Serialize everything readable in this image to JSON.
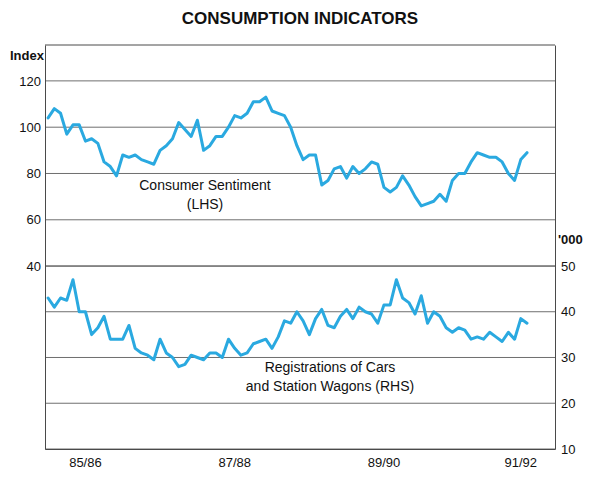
{
  "chart_data": {
    "type": "line",
    "title": "CONSUMPTION INDICATORS",
    "ylabel": "Index",
    "y2label": "'000",
    "categories": [
      null,
      null,
      null,
      null,
      null,
      null,
      "85/86",
      null,
      null,
      null,
      null,
      null,
      null,
      null,
      null,
      null,
      null,
      null,
      null,
      null,
      null,
      null,
      null,
      null,
      null,
      null,
      null,
      null,
      null,
      null,
      "87/88",
      null,
      null,
      null,
      null,
      null,
      null,
      null,
      null,
      null,
      null,
      null,
      null,
      null,
      null,
      null,
      null,
      null,
      null,
      null,
      null,
      null,
      null,
      null,
      "89/90",
      null,
      null,
      null,
      null,
      null,
      null,
      null,
      null,
      null,
      null,
      null,
      null,
      null,
      null,
      null,
      null,
      null,
      null,
      null,
      null,
      null,
      "91/92",
      null,
      null,
      null,
      null,
      null
    ],
    "series": [
      {
        "name": "Consumer Sentiment\n(LHS)",
        "color": "#2aa9e0",
        "axis": "y",
        "values": [
          104,
          108,
          106,
          97,
          101,
          101,
          94,
          95,
          93,
          85,
          83,
          79,
          88,
          87,
          88,
          86,
          85,
          84,
          90,
          92,
          95,
          102,
          99,
          96,
          103,
          90,
          92,
          96,
          96,
          100,
          105,
          104,
          106,
          111,
          111,
          113,
          107,
          106,
          105,
          100,
          92,
          86,
          88,
          88,
          75,
          77,
          82,
          83,
          78,
          83,
          80,
          82,
          85,
          84,
          74,
          72,
          74,
          79,
          75,
          70,
          66,
          67,
          68,
          71,
          68,
          77,
          80,
          80,
          85,
          89,
          88,
          87,
          87,
          85,
          80,
          77,
          86,
          89,
          null,
          null,
          null,
          null
        ]
      },
      {
        "name": "Registrations of Cars\nand Station Wagons (RHS)",
        "color": "#2aa9e0",
        "axis": "y2",
        "values": [
          43,
          41,
          43,
          42.5,
          47,
          40,
          40,
          35,
          36.5,
          39,
          34,
          34,
          34,
          37,
          32,
          31,
          30.5,
          29.5,
          34,
          31,
          30,
          28,
          28.5,
          30.5,
          30,
          29.5,
          31,
          31,
          30,
          34,
          32,
          30.5,
          31,
          33,
          33.5,
          34,
          32,
          34.5,
          38,
          37.5,
          40,
          38,
          35,
          38.5,
          40.5,
          37,
          36.5,
          39,
          40.5,
          38.5,
          41,
          40,
          39.5,
          37.5,
          41.5,
          41.5,
          47,
          43,
          42,
          39.5,
          43.5,
          37.5,
          40,
          39,
          36.5,
          35.5,
          36.5,
          36,
          34,
          34.5,
          34,
          35.5,
          34.5,
          33.5,
          35.5,
          34,
          38.5,
          37.5,
          null,
          null,
          null,
          null
        ]
      }
    ],
    "ylim": [
      -39,
      135.5
    ],
    "yticks": [
      40,
      60,
      80,
      100,
      120
    ],
    "y2lim": [
      10,
      98.3
    ],
    "y2ticks": [
      10,
      20,
      30,
      40,
      50
    ],
    "grid": true
  }
}
